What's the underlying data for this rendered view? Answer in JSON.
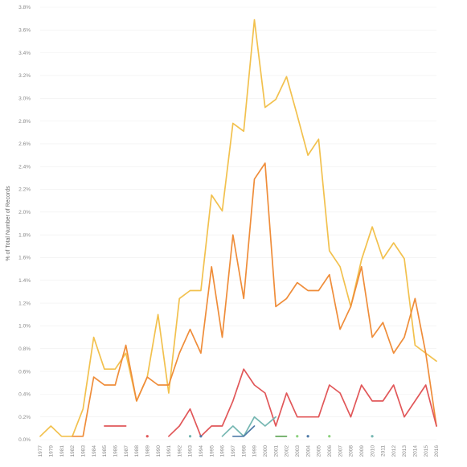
{
  "chart_data": {
    "type": "line",
    "title": "",
    "xlabel": "",
    "ylabel": "% of Total Number of Records",
    "ylim": [
      0,
      3.8
    ],
    "y_ticks": [
      "0.0%",
      "0.2%",
      "0.4%",
      "0.6%",
      "0.8%",
      "1.0%",
      "1.2%",
      "1.4%",
      "1.6%",
      "1.8%",
      "2.0%",
      "2.2%",
      "2.4%",
      "2.6%",
      "2.8%",
      "3.0%",
      "3.2%",
      "3.4%",
      "3.6%",
      "3.8%"
    ],
    "grid": true,
    "x": [
      1977,
      1979,
      1981,
      1982,
      1983,
      1984,
      1985,
      1986,
      1987,
      1988,
      1989,
      1990,
      1991,
      1992,
      1993,
      1994,
      1995,
      1996,
      1997,
      1998,
      1999,
      2000,
      2001,
      2002,
      2003,
      2004,
      2005,
      2006,
      2007,
      2008,
      2009,
      2010,
      2011,
      2012,
      2013,
      2014,
      2015,
      2016
    ],
    "series": [
      {
        "color": "#f2c14e",
        "values": [
          0.03,
          0.12,
          0.03,
          0.03,
          0.27,
          0.9,
          0.62,
          0.62,
          0.76,
          0.34,
          0.55,
          1.1,
          0.41,
          1.24,
          1.31,
          1.31,
          2.15,
          2.01,
          2.78,
          2.71,
          3.69,
          2.92,
          2.99,
          3.19,
          2.85,
          2.5,
          2.64,
          1.66,
          1.52,
          1.17,
          1.58,
          1.87,
          1.59,
          1.73,
          1.59,
          0.83,
          0.76,
          0.69
        ]
      },
      {
        "color": "#ef8d3a",
        "values": [
          null,
          null,
          null,
          0.03,
          0.03,
          0.55,
          0.48,
          0.48,
          0.83,
          0.34,
          0.55,
          0.48,
          0.48,
          0.76,
          0.97,
          0.76,
          1.52,
          0.9,
          1.8,
          1.24,
          2.29,
          2.43,
          1.17,
          1.24,
          1.38,
          1.31,
          1.31,
          1.45,
          0.97,
          1.17,
          1.52,
          0.9,
          1.03,
          0.76,
          0.9,
          1.24,
          0.76,
          0.12
        ]
      },
      {
        "color": "#e15759",
        "values": [
          null,
          null,
          null,
          null,
          null,
          null,
          0.12,
          0.12,
          0.12,
          null,
          0.03,
          null,
          0.03,
          0.12,
          0.27,
          0.03,
          0.12,
          0.12,
          0.34,
          0.62,
          0.48,
          0.41,
          0.12,
          0.41,
          0.2,
          0.2,
          0.2,
          0.48,
          0.41,
          0.2,
          0.48,
          0.34,
          0.34,
          0.48,
          0.2,
          0.34,
          0.48,
          0.12
        ]
      },
      {
        "color": "#76b7b2",
        "values": [
          null,
          null,
          null,
          null,
          null,
          null,
          null,
          null,
          null,
          null,
          null,
          null,
          null,
          null,
          0.03,
          null,
          null,
          0.03,
          0.12,
          0.03,
          0.2,
          0.12,
          0.2,
          null,
          null,
          null,
          null,
          null,
          null,
          null,
          null,
          0.03,
          null,
          null,
          null,
          null,
          null,
          null
        ]
      },
      {
        "color": "#4e79a7",
        "values": [
          null,
          null,
          null,
          null,
          null,
          null,
          null,
          null,
          null,
          null,
          null,
          null,
          null,
          null,
          null,
          0.03,
          null,
          null,
          0.03,
          0.03,
          0.12,
          null,
          null,
          null,
          null,
          0.03,
          null,
          null,
          null,
          null,
          null,
          null,
          null,
          null,
          null,
          null,
          null,
          null
        ]
      },
      {
        "color": "#59a14f",
        "values": [
          null,
          null,
          null,
          null,
          null,
          null,
          null,
          null,
          null,
          null,
          null,
          null,
          null,
          null,
          null,
          null,
          null,
          null,
          null,
          null,
          null,
          null,
          0.03,
          0.03,
          null,
          null,
          null,
          null,
          null,
          null,
          null,
          null,
          null,
          null,
          null,
          null,
          null,
          null
        ]
      },
      {
        "color": "#8cd17d",
        "values": [
          null,
          null,
          null,
          null,
          null,
          null,
          null,
          null,
          null,
          null,
          null,
          null,
          null,
          null,
          null,
          null,
          null,
          null,
          null,
          null,
          null,
          null,
          null,
          null,
          0.03,
          null,
          null,
          0.03,
          null,
          null,
          null,
          null,
          null,
          null,
          null,
          null,
          null,
          null
        ]
      }
    ]
  }
}
